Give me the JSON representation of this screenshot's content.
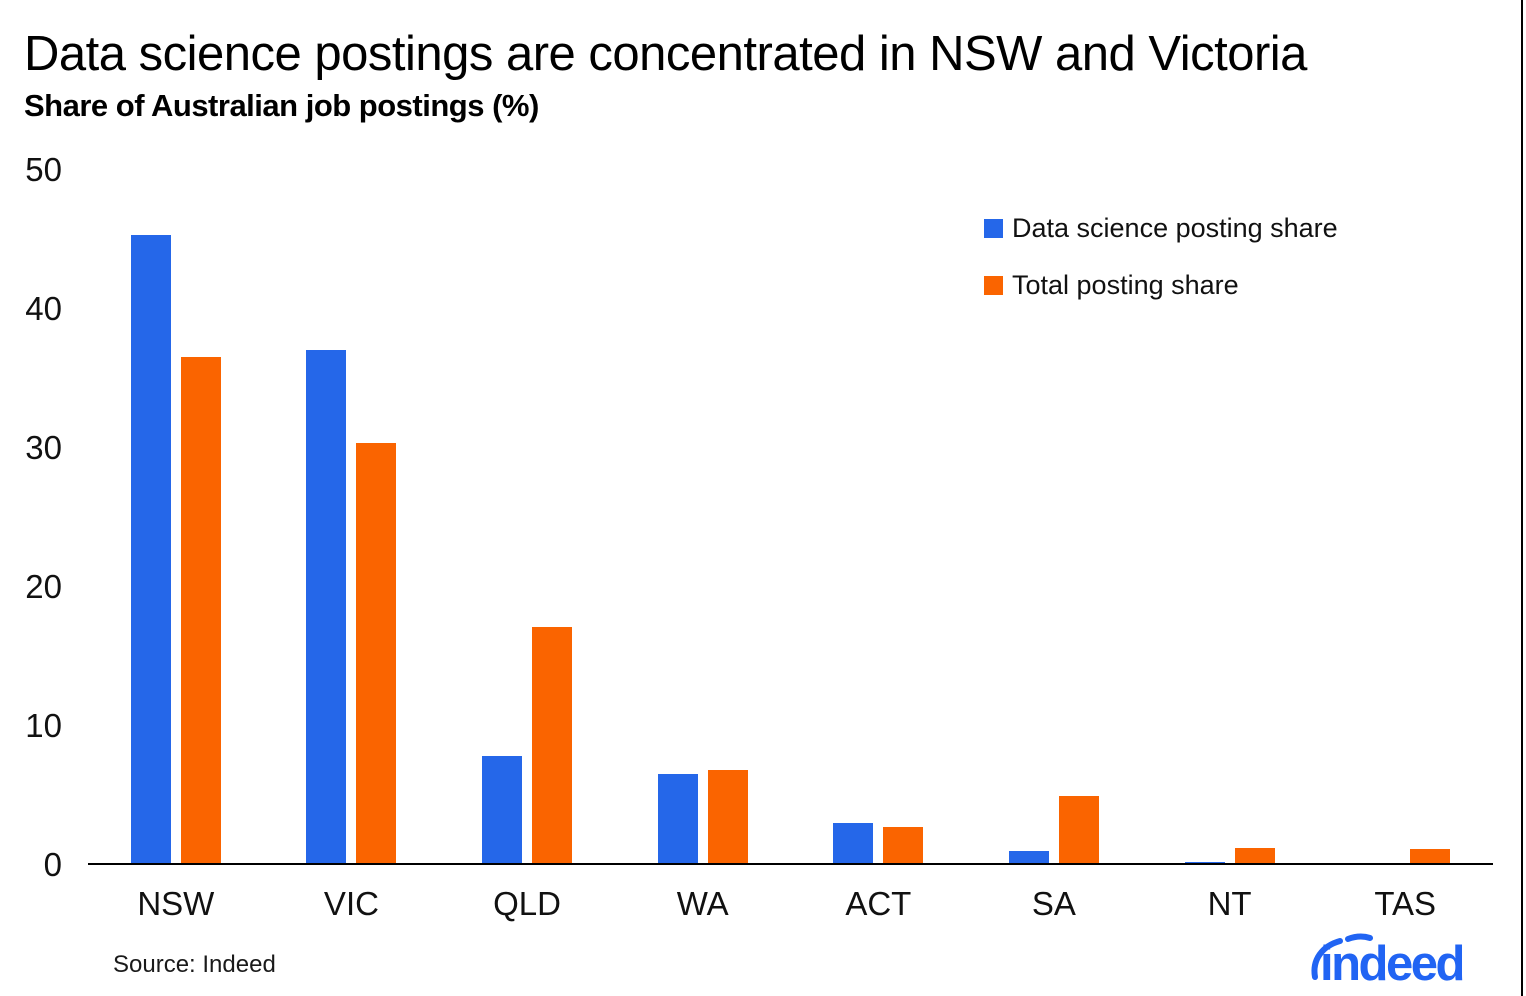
{
  "header": {
    "title": "Data science postings are concentrated in NSW and Victoria",
    "subtitle": "Share of Australian job postings (%)"
  },
  "chart_data": {
    "type": "bar",
    "categories": [
      "NSW",
      "VIC",
      "QLD",
      "WA",
      "ACT",
      "SA",
      "NT",
      "TAS"
    ],
    "series": [
      {
        "name": "Data science posting share",
        "color": "#2567E9",
        "values": [
          45.2,
          36.9,
          7.7,
          6.4,
          2.9,
          0.9,
          0.1,
          0
        ]
      },
      {
        "name": "Total posting share",
        "color": "#FA6400",
        "values": [
          36.4,
          30.2,
          17.0,
          6.7,
          2.6,
          4.8,
          1.1,
          1.0
        ]
      }
    ],
    "title": "Data science postings are concentrated in NSW and Victoria",
    "ylabel": "Share of Australian job postings (%)",
    "xlabel": "",
    "ylim": [
      0,
      50
    ],
    "yticks": [
      0,
      10,
      20,
      30,
      40,
      50
    ],
    "grid": false,
    "legend_position": "upper right"
  },
  "footer": {
    "source": "Source: Indeed",
    "logo_text": "indeed",
    "logo_color": "#2164F3"
  }
}
